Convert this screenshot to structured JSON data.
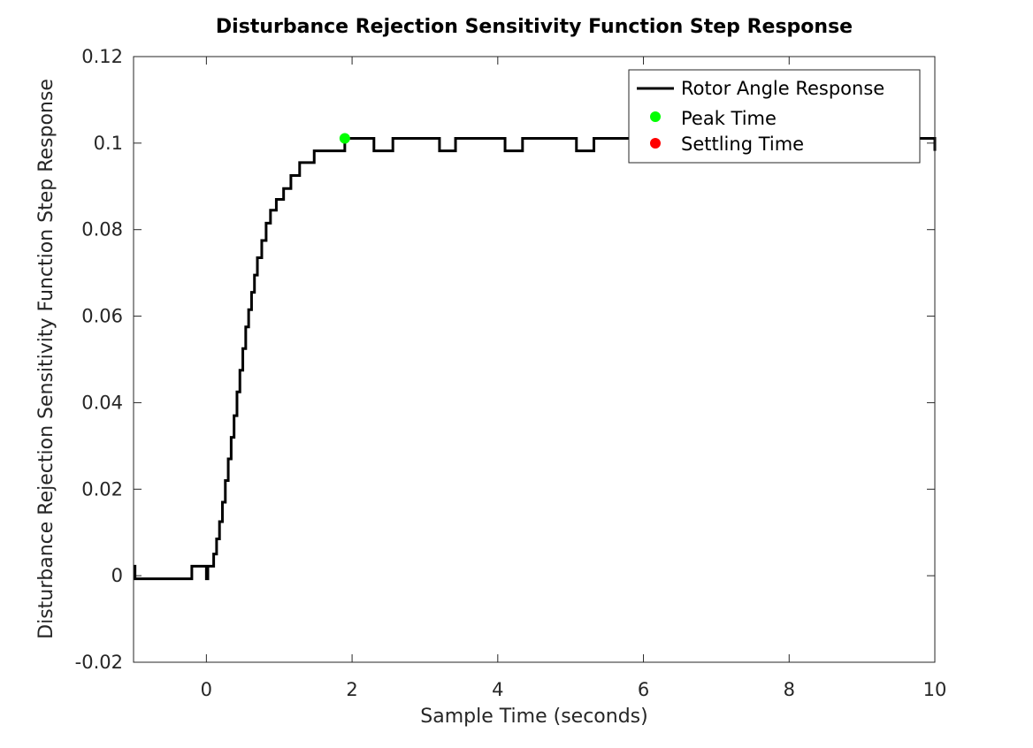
{
  "chart_data": {
    "type": "line",
    "title": "Disturbance Rejection Sensitivity Function Step Response",
    "xlabel": "Sample Time (seconds)",
    "ylabel": "Disturbance Rejection Sensitivity Function Step Response",
    "xlim": [
      -1,
      10
    ],
    "ylim": [
      -0.02,
      0.12
    ],
    "xticks": [
      0,
      2,
      4,
      6,
      8,
      10
    ],
    "xtick_labels": [
      "0",
      "2",
      "4",
      "6",
      "8",
      "10"
    ],
    "yticks": [
      -0.02,
      0,
      0.02,
      0.04,
      0.06,
      0.08,
      0.1,
      0.12
    ],
    "ytick_labels": [
      "-0.02",
      "0",
      "0.02",
      "0.04",
      "0.06",
      "0.08",
      "0.1",
      "0.12"
    ],
    "grid": false,
    "legend_position": "top-right",
    "series": [
      {
        "name": "Rotor Angle Response",
        "color": "#000000",
        "style": "stairs",
        "x": [
          -1.0,
          -0.98,
          -0.2,
          0.0,
          0.02,
          0.1,
          0.14,
          0.18,
          0.22,
          0.26,
          0.3,
          0.34,
          0.38,
          0.42,
          0.46,
          0.5,
          0.54,
          0.58,
          0.62,
          0.66,
          0.7,
          0.76,
          0.82,
          0.88,
          0.96,
          1.06,
          1.16,
          1.28,
          1.48,
          1.9,
          2.3,
          2.56,
          3.2,
          3.42,
          4.1,
          4.34,
          5.08,
          5.32,
          10.0
        ],
        "y": [
          0.0022,
          -0.0007,
          0.0022,
          -0.0007,
          0.0022,
          0.005,
          0.0085,
          0.0125,
          0.017,
          0.022,
          0.027,
          0.032,
          0.037,
          0.0425,
          0.0475,
          0.0525,
          0.0575,
          0.0615,
          0.0655,
          0.0695,
          0.0735,
          0.0775,
          0.0815,
          0.0845,
          0.087,
          0.0895,
          0.0925,
          0.0955,
          0.0982,
          0.1011,
          0.0982,
          0.1011,
          0.0982,
          0.1011,
          0.0982,
          0.1011,
          0.0982,
          0.1011,
          0.0982
        ]
      }
    ],
    "markers": [
      {
        "name": "Peak Time",
        "color": "#00ff00",
        "x": [
          1.9
        ],
        "y": [
          0.1011
        ]
      },
      {
        "name": "Settling Time",
        "color": "#ff0000",
        "x": [],
        "y": []
      }
    ]
  }
}
